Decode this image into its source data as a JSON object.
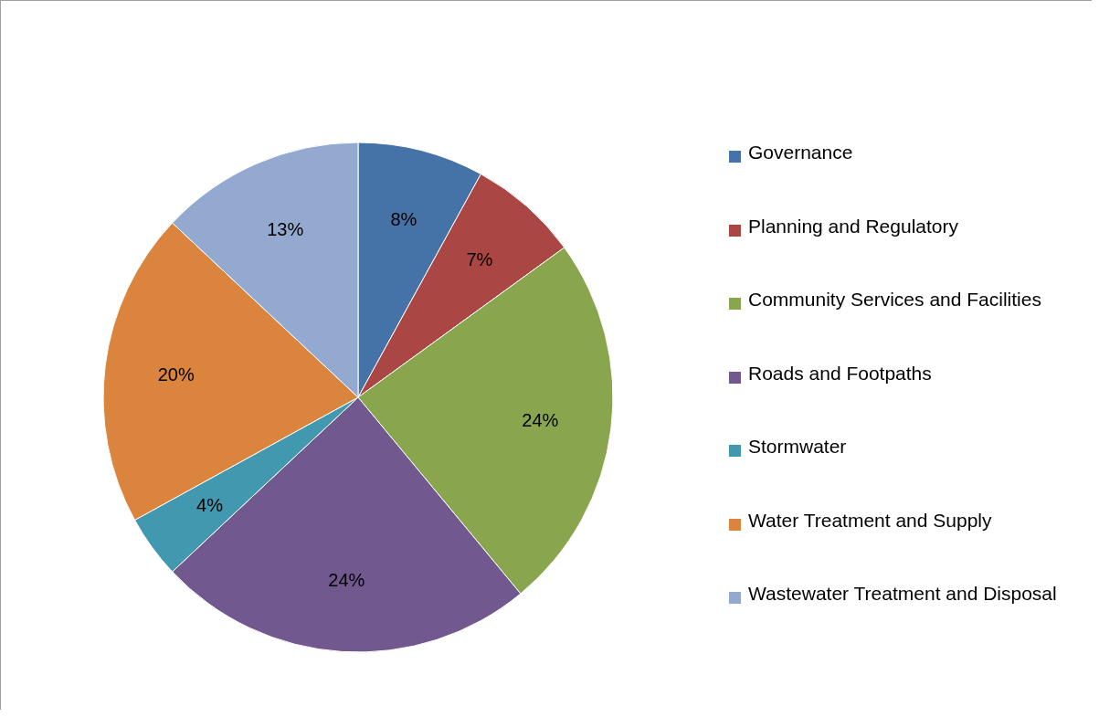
{
  "chart_data": {
    "type": "pie",
    "categories": [
      "Governance",
      "Planning and Regulatory",
      "Community Services and Facilities",
      "Roads and Footpaths",
      "Stormwater",
      "Water Treatment and Supply",
      "Wastewater Treatment and Disposal"
    ],
    "values": [
      8,
      7,
      24,
      24,
      4,
      20,
      13
    ],
    "value_labels": [
      "8%",
      "7%",
      "24%",
      "24%",
      "4%",
      "20%",
      "13%"
    ],
    "colors": [
      "#4573a7",
      "#aa4643",
      "#89a54e",
      "#71588f",
      "#4198af",
      "#db843d",
      "#93a9cf"
    ],
    "legend": "right"
  }
}
